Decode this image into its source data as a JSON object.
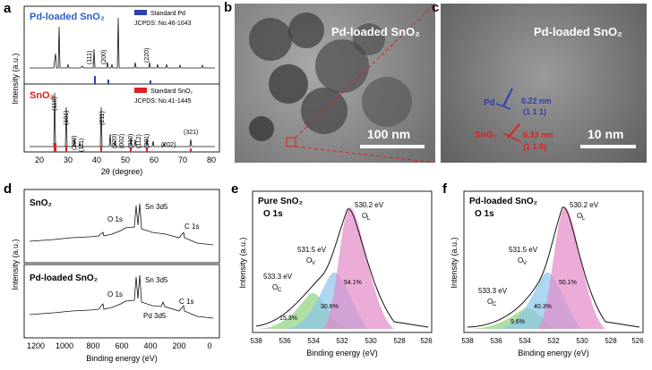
{
  "panels": {
    "a": {
      "letter": "a",
      "top_label": "Pd-loaded SnO₂",
      "bottom_label": "SnO₂",
      "legend_pd": "Standard Pd",
      "legend_pd_ref": "JCPDS: No.46-1043",
      "legend_sno2": "Standard SnO₂",
      "legend_sno2_ref": "JCPDS: No.41-1445",
      "pd_peaks": [
        "(111)",
        "(200)",
        "(220)"
      ],
      "sno2_peaks": [
        "(110)",
        "(101)",
        "(200)",
        "(111)",
        "(211)",
        "(220)",
        "(002)",
        "(310)",
        "(112)",
        "(301)",
        "(202)",
        "(321)"
      ],
      "xlabel": "2θ (degree)",
      "ylabel": "Intensity (a.u.)",
      "xticks": [
        "20",
        "30",
        "40",
        "50",
        "60",
        "70",
        "80"
      ]
    },
    "b": {
      "letter": "b",
      "label": "Pd-loaded SnO₂",
      "scale": "100 nm"
    },
    "c": {
      "letter": "c",
      "label": "Pd-loaded SnO₂",
      "scale": "10 nm",
      "pd_label": "Pd",
      "pd_spacing": "0.22 nm",
      "pd_plane": "(1 1 1)",
      "sno2_label": "SnO₂",
      "sno2_spacing": "0.33 nm",
      "sno2_plane": "(1 1 0)"
    },
    "d": {
      "letter": "d",
      "top_title": "SnO₂",
      "bottom_title": "Pd-loaded SnO₂",
      "top_peaks": [
        "O 1s",
        "Sn 3d5",
        "C 1s"
      ],
      "bottom_peaks": [
        "O 1s",
        "Sn 3d5",
        "Pd 3d5",
        "C 1s"
      ],
      "xlabel": "Binding energy (eV)",
      "ylabel": "Intensity (a.u.)",
      "xticks": [
        "1200",
        "1000",
        "800",
        "600",
        "400",
        "200",
        "0"
      ]
    },
    "e": {
      "letter": "e",
      "title1": "Pure SnO₂",
      "title2": "O 1s",
      "peaks": [
        {
          "energy": "533.3 eV",
          "name": "O",
          "sub": "C",
          "pct": "15.3%"
        },
        {
          "energy": "531.5 eV",
          "name": "O",
          "sub": "V",
          "pct": "30.6%"
        },
        {
          "energy": "530.2 eV",
          "name": "O",
          "sub": "L",
          "pct": "54.1%"
        }
      ],
      "xlabel": "Binding energy (eV)",
      "ylabel": "Intensity (a.u.)",
      "xticks": [
        "538",
        "536",
        "534",
        "532",
        "530",
        "528",
        "526"
      ]
    },
    "f": {
      "letter": "f",
      "title1": "Pd-loaded SnO₂",
      "title2": "O 1s",
      "peaks": [
        {
          "energy": "533.3 eV",
          "name": "O",
          "sub": "C",
          "pct": "9.6%"
        },
        {
          "energy": "531.5 eV",
          "name": "O",
          "sub": "V",
          "pct": "40.3%"
        },
        {
          "energy": "530.2 eV",
          "name": "O",
          "sub": "L",
          "pct": "50.1%"
        }
      ],
      "xlabel": "Binding energy (eV)",
      "ylabel": "Intensity (a.u.)",
      "xticks": [
        "538",
        "536",
        "534",
        "532",
        "530",
        "528",
        "526"
      ]
    }
  },
  "colors": {
    "pd_blue": "#2f3fb5",
    "sno2_red": "#e02020",
    "oc_green": "#8fd07c",
    "ov_blue": "#8cc4ea",
    "ol_pink": "#e38ac8",
    "label_blue": "#2a5fd0"
  }
}
